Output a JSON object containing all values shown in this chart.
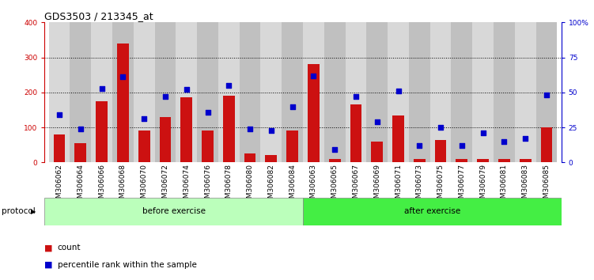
{
  "title": "GDS3503 / 213345_at",
  "categories": [
    "GSM306062",
    "GSM306064",
    "GSM306066",
    "GSM306068",
    "GSM306070",
    "GSM306072",
    "GSM306074",
    "GSM306076",
    "GSM306078",
    "GSM306080",
    "GSM306082",
    "GSM306084",
    "GSM306063",
    "GSM306065",
    "GSM306067",
    "GSM306069",
    "GSM306071",
    "GSM306073",
    "GSM306075",
    "GSM306077",
    "GSM306079",
    "GSM306081",
    "GSM306083",
    "GSM306085"
  ],
  "counts": [
    80,
    55,
    175,
    340,
    92,
    130,
    185,
    90,
    190,
    25,
    20,
    90,
    280,
    10,
    165,
    60,
    135,
    10,
    65,
    10,
    10,
    10,
    10,
    100
  ],
  "percentiles": [
    34,
    24,
    53,
    61,
    31,
    47,
    52,
    36,
    55,
    24,
    23,
    40,
    62,
    9,
    47,
    29,
    51,
    12,
    25,
    12,
    21,
    15,
    17,
    48
  ],
  "before_count": 12,
  "after_count": 12,
  "bar_color": "#cc1111",
  "square_color": "#0000cc",
  "before_color": "#bbffbb",
  "after_color": "#44ee44",
  "left_ylim": [
    0,
    400
  ],
  "right_ylim": [
    0,
    100
  ],
  "left_yticks": [
    0,
    100,
    200,
    300,
    400
  ],
  "right_yticks": [
    0,
    25,
    50,
    75,
    100
  ],
  "right_yticklabels": [
    "0",
    "25",
    "50",
    "75",
    "100%"
  ],
  "left_ycolor": "#cc0000",
  "right_ycolor": "#0000cc",
  "protocol_label": "protocol",
  "before_label": "before exercise",
  "after_label": "after exercise",
  "legend_count_label": "count",
  "legend_pct_label": "percentile rank within the sample",
  "title_fontsize": 9,
  "tick_fontsize": 6.5,
  "label_fontsize": 7.5
}
